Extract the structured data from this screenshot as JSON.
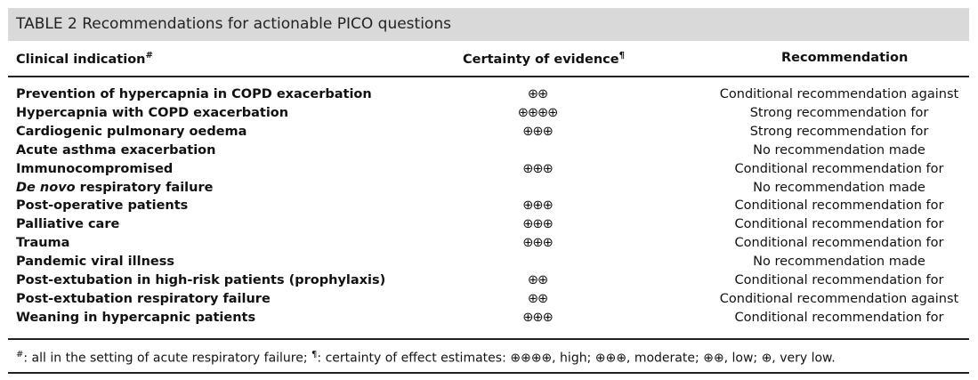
{
  "title": "TABLE 2 Recommendations for actionable PICO questions",
  "headers": {
    "indication": "Clinical indication",
    "indication_mark": "#",
    "certainty": "Certainty of evidence",
    "certainty_mark": "¶",
    "recommendation": "Recommendation"
  },
  "rows": [
    {
      "indication_italic": "",
      "indication": "Prevention of hypercapnia in COPD exacerbation",
      "certainty": "⊕⊕",
      "recommendation": "Conditional recommendation against"
    },
    {
      "indication_italic": "",
      "indication": "Hypercapnia with COPD exacerbation",
      "certainty": "⊕⊕⊕⊕",
      "recommendation": "Strong recommendation for"
    },
    {
      "indication_italic": "",
      "indication": "Cardiogenic pulmonary oedema",
      "certainty": "⊕⊕⊕",
      "recommendation": "Strong recommendation for"
    },
    {
      "indication_italic": "",
      "indication": "Acute asthma exacerbation",
      "certainty": "",
      "recommendation": "No recommendation made"
    },
    {
      "indication_italic": "",
      "indication": "Immunocompromised",
      "certainty": "⊕⊕⊕",
      "recommendation": "Conditional recommendation for"
    },
    {
      "indication_italic": "De novo",
      "indication": " respiratory failure",
      "certainty": "",
      "recommendation": "No recommendation made"
    },
    {
      "indication_italic": "",
      "indication": "Post-operative patients",
      "certainty": "⊕⊕⊕",
      "recommendation": "Conditional recommendation for"
    },
    {
      "indication_italic": "",
      "indication": "Palliative care",
      "certainty": "⊕⊕⊕",
      "recommendation": "Conditional recommendation for"
    },
    {
      "indication_italic": "",
      "indication": "Trauma",
      "certainty": "⊕⊕⊕",
      "recommendation": "Conditional recommendation for"
    },
    {
      "indication_italic": "",
      "indication": "Pandemic viral illness",
      "certainty": "",
      "recommendation": "No recommendation made"
    },
    {
      "indication_italic": "",
      "indication": "Post-extubation in high-risk patients (prophylaxis)",
      "certainty": "⊕⊕",
      "recommendation": "Conditional recommendation for"
    },
    {
      "indication_italic": "",
      "indication": "Post-extubation respiratory failure",
      "certainty": "⊕⊕",
      "recommendation": "Conditional recommendation against"
    },
    {
      "indication_italic": "",
      "indication": "Weaning in hypercapnic patients",
      "certainty": "⊕⊕⊕",
      "recommendation": "Conditional recommendation for"
    }
  ],
  "footnote": {
    "mark1": "#",
    "text1": ": all in the setting of acute respiratory failure; ",
    "mark2": "¶",
    "text2": ": certainty of effect estimates: ⊕⊕⊕⊕, high; ⊕⊕⊕, moderate; ⊕⊕, low; ⊕, very low."
  }
}
